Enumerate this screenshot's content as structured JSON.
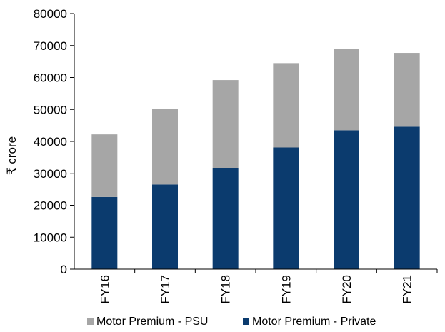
{
  "chart_data": {
    "type": "bar",
    "stacked": true,
    "categories": [
      "FY16",
      "FY17",
      "FY18",
      "FY19",
      "FY20",
      "FY21"
    ],
    "series": [
      {
        "name": "Motor Premium - Private",
        "values": [
          22600,
          26500,
          31600,
          38100,
          43500,
          44600
        ],
        "color": "#0b3b6e"
      },
      {
        "name": "Motor Premium - PSU",
        "values": [
          19600,
          23700,
          27600,
          26400,
          25500,
          23100
        ],
        "color": "#a6a6a6"
      }
    ],
    "ylabel": "₹ crore",
    "ylim": [
      0,
      80000
    ],
    "yticks": [
      0,
      10000,
      20000,
      30000,
      40000,
      50000,
      60000,
      70000,
      80000
    ],
    "grid": false,
    "legend": {
      "placement": "bottom",
      "entries": [
        {
          "label": "Motor Premium - PSU",
          "color": "#a6a6a6"
        },
        {
          "label": "Motor Premium - Private",
          "color": "#0b3b6e"
        }
      ]
    }
  }
}
